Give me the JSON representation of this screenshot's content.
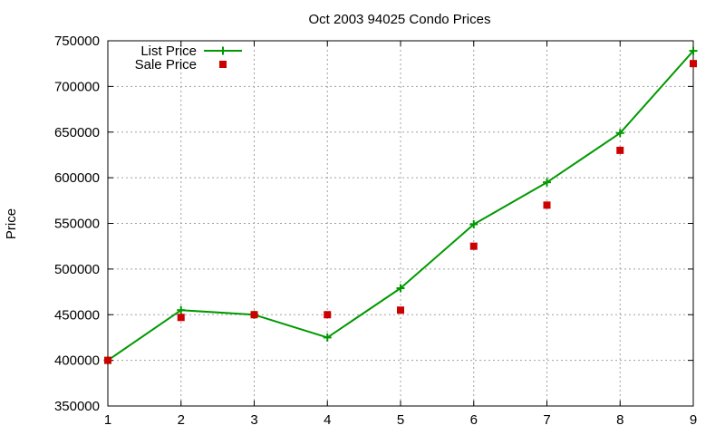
{
  "chart_data": {
    "type": "line",
    "title": "Oct 2003 94025 Condo Prices",
    "xlabel": "",
    "ylabel": "Price",
    "xlim": [
      1,
      9
    ],
    "ylim": [
      350000,
      750000
    ],
    "x_ticks": [
      "1",
      "2",
      "3",
      "4",
      "5",
      "6",
      "7",
      "8",
      "9"
    ],
    "y_ticks": [
      "350000",
      "400000",
      "450000",
      "500000",
      "550000",
      "600000",
      "650000",
      "700000",
      "750000"
    ],
    "grid": true,
    "legend_position": "top-left",
    "x": [
      1,
      2,
      3,
      4,
      5,
      6,
      7,
      8,
      9
    ],
    "series": [
      {
        "name": "List Price",
        "style": "linespoints",
        "marker": "plus",
        "color": "#009900",
        "values": [
          400000,
          455000,
          450000,
          425000,
          479000,
          549000,
          595000,
          649000,
          739000
        ]
      },
      {
        "name": "Sale Price",
        "style": "points",
        "marker": "square",
        "color": "#cc0000",
        "values": [
          400000,
          447000,
          450000,
          450000,
          455000,
          525000,
          570000,
          630000,
          725000
        ]
      }
    ]
  }
}
